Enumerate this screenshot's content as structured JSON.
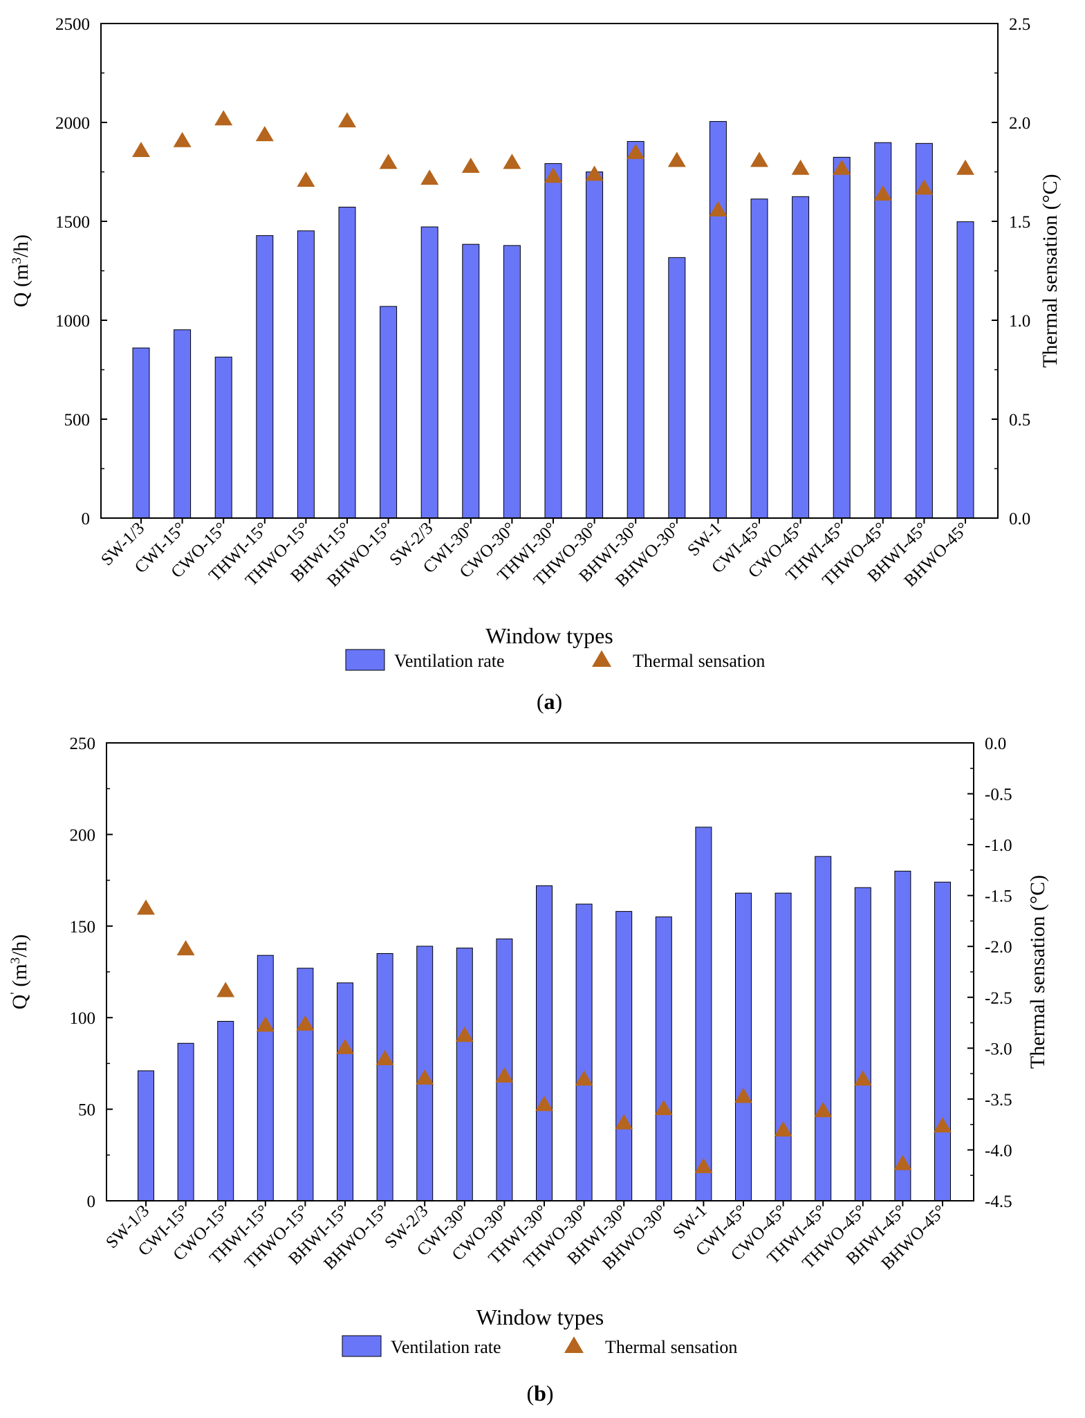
{
  "chart_data": [
    {
      "panel": "a",
      "type": "bar",
      "xlabel": "Window types",
      "ylabel_left": {
        "base": "Q (m",
        "sup": "3",
        "tail": "/h)"
      },
      "ylabel_right": "Thermal sensation (°C)",
      "ylim_left": [
        0,
        2500
      ],
      "ylim_right": [
        0.0,
        2.5
      ],
      "yticks_left": [
        "0",
        "500",
        "1000",
        "1500",
        "2000",
        "2500"
      ],
      "yticks_right": [
        "0.0",
        "0.5",
        "1.0",
        "1.5",
        "2.0",
        "2.5"
      ],
      "categories": [
        "SW-1/3",
        "CWI-15°",
        "CWO-15°",
        "THWI-15°",
        "THWO-15°",
        "BHWI-15°",
        "BHWO-15°",
        "SW-2/3",
        "CWI-30°",
        "CWO-30°",
        "THWI-30°",
        "THWO-30°",
        "BHWI-30°",
        "BHWO-30°",
        "SW-1",
        "CWI-45°",
        "CWO-45°",
        "THWI-45°",
        "THWO-45°",
        "BHWI-45°",
        "BHWO-45°"
      ],
      "series": [
        {
          "name": "Ventilation rate",
          "axis": "left",
          "kind": "bar",
          "color": "#6a76f8",
          "values": [
            860,
            952,
            814,
            1428,
            1452,
            1572,
            1070,
            1472,
            1384,
            1378,
            1792,
            1750,
            1904,
            1317,
            2005,
            1613,
            1625,
            1824,
            1898,
            1894,
            1498
          ]
        },
        {
          "name": "Thermal sensation",
          "axis": "right",
          "kind": "marker",
          "color": "#b5651d",
          "values": [
            1.86,
            1.91,
            2.02,
            1.94,
            1.71,
            2.01,
            1.8,
            1.72,
            1.78,
            1.8,
            1.73,
            1.74,
            1.85,
            1.81,
            1.56,
            1.81,
            1.77,
            1.77,
            1.64,
            1.67,
            1.77
          ]
        }
      ],
      "legend": [
        "Ventilation rate",
        "Thermal sensation"
      ],
      "caption": "a"
    },
    {
      "panel": "b",
      "type": "bar",
      "xlabel": "Window types",
      "ylabel_left": {
        "base": "Q",
        "sup": "'",
        "tail": " (m",
        "sup2": "3",
        "tail2": "/h)"
      },
      "ylabel_right": "Thermal sensation (°C)",
      "ylim_left": [
        0,
        250
      ],
      "ylim_right": [
        -4.5,
        0.0
      ],
      "yticks_left": [
        "0",
        "50",
        "100",
        "150",
        "200",
        "250"
      ],
      "yticks_right": [
        "-4.5",
        "-4.0",
        "-3.5",
        "-3.0",
        "-2.5",
        "-2.0",
        "-1.5",
        "-1.0",
        "-0.5",
        "0.0"
      ],
      "categories": [
        "SW-1/3",
        "CWI-15°",
        "CWO-15°",
        "THWI-15°",
        "THWO-15°",
        "BHWI-15°",
        "BHWO-15°",
        "SW-2/3",
        "CWI-30°",
        "CWO-30°",
        "THWI-30°",
        "THWO-30°",
        "BHWI-30°",
        "BHWO-30°",
        "SW-1",
        "CWI-45°",
        "CWO-45°",
        "THWI-45°",
        "THWO-45°",
        "BHWI-45°",
        "BHWO-45°"
      ],
      "series": [
        {
          "name": "Ventilation rate",
          "axis": "left",
          "kind": "bar",
          "color": "#6a76f8",
          "values": [
            71,
            86,
            98,
            134,
            127,
            119,
            135,
            139,
            138,
            143,
            172,
            162,
            158,
            155,
            204,
            168,
            168,
            188,
            171,
            180,
            174
          ]
        },
        {
          "name": "Thermal sensation",
          "axis": "right",
          "kind": "marker",
          "color": "#b5651d",
          "values": [
            -1.62,
            -2.02,
            -2.43,
            -2.77,
            -2.76,
            -2.99,
            -3.1,
            -3.29,
            -2.87,
            -3.27,
            -3.55,
            -3.3,
            -3.73,
            -3.59,
            -4.16,
            -3.47,
            -3.8,
            -3.61,
            -3.3,
            -4.13,
            -3.76
          ]
        }
      ],
      "legend": [
        "Ventilation rate",
        "Thermal sensation"
      ],
      "caption": "b"
    }
  ]
}
